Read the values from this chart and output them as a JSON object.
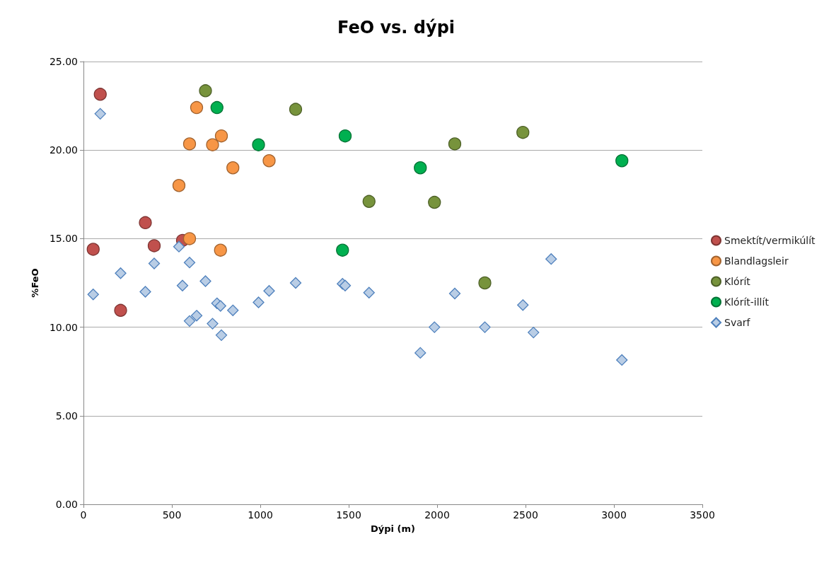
{
  "chart_data": {
    "type": "scatter",
    "title": "FeO vs. dýpi",
    "xlabel": "Dýpi (m)",
    "ylabel": "%FeO",
    "xlim": [
      0,
      3500
    ],
    "xticks": [
      0,
      500,
      1000,
      1500,
      2000,
      2500,
      3000,
      3500
    ],
    "ylim": [
      0,
      25
    ],
    "yticks": [
      {
        "value": 0,
        "label": "0.00"
      },
      {
        "value": 5,
        "label": "5.00"
      },
      {
        "value": 10,
        "label": "10.00"
      },
      {
        "value": 15,
        "label": "15.00"
      },
      {
        "value": 20,
        "label": "20.00"
      },
      {
        "value": 25,
        "label": "25.00"
      }
    ],
    "grid": "y",
    "legend": "right",
    "series": [
      {
        "name": "Smektít/vermikúlít",
        "color": "#c0504d",
        "marker": "circle",
        "x": [
          95,
          55,
          350,
          400,
          560,
          210
        ],
        "values": [
          23.15,
          14.4,
          15.9,
          14.6,
          14.9,
          10.95
        ]
      },
      {
        "name": "Blandlagsleir",
        "color": "#f79646",
        "marker": "circle",
        "x": [
          640,
          600,
          730,
          780,
          845,
          1050,
          540,
          600,
          775
        ],
        "values": [
          22.4,
          20.35,
          20.3,
          20.8,
          19.0,
          19.4,
          18.0,
          15.0,
          14.35
        ]
      },
      {
        "name": "Klórít",
        "color": "#77933c",
        "marker": "circle",
        "x": [
          690,
          1200,
          2100,
          2485,
          1615,
          1985,
          2270
        ],
        "values": [
          23.35,
          22.3,
          20.35,
          21.0,
          17.1,
          17.05,
          12.5
        ]
      },
      {
        "name": "Klórít-illít",
        "color": "#00b050",
        "marker": "circle",
        "x": [
          755,
          990,
          1480,
          1905,
          3045,
          1465
        ],
        "values": [
          22.4,
          20.3,
          20.8,
          19.0,
          19.4,
          14.35
        ]
      },
      {
        "name": "Svarf",
        "color": "#b9cde5",
        "marker": "diamond",
        "x": [
          95,
          55,
          210,
          350,
          400,
          540,
          560,
          600,
          600,
          640,
          690,
          730,
          755,
          775,
          780,
          845,
          990,
          1050,
          1200,
          1465,
          1480,
          1615,
          1905,
          1985,
          2100,
          2270,
          2485,
          2545,
          2645,
          3045
        ],
        "values": [
          22.05,
          11.85,
          13.05,
          12.0,
          13.6,
          14.55,
          12.35,
          13.65,
          10.35,
          10.65,
          12.6,
          10.2,
          11.35,
          11.2,
          9.55,
          10.95,
          11.4,
          12.05,
          12.5,
          12.45,
          12.35,
          11.95,
          8.55,
          10.0,
          11.9,
          10.0,
          11.25,
          9.7,
          13.85,
          8.15
        ]
      }
    ]
  }
}
